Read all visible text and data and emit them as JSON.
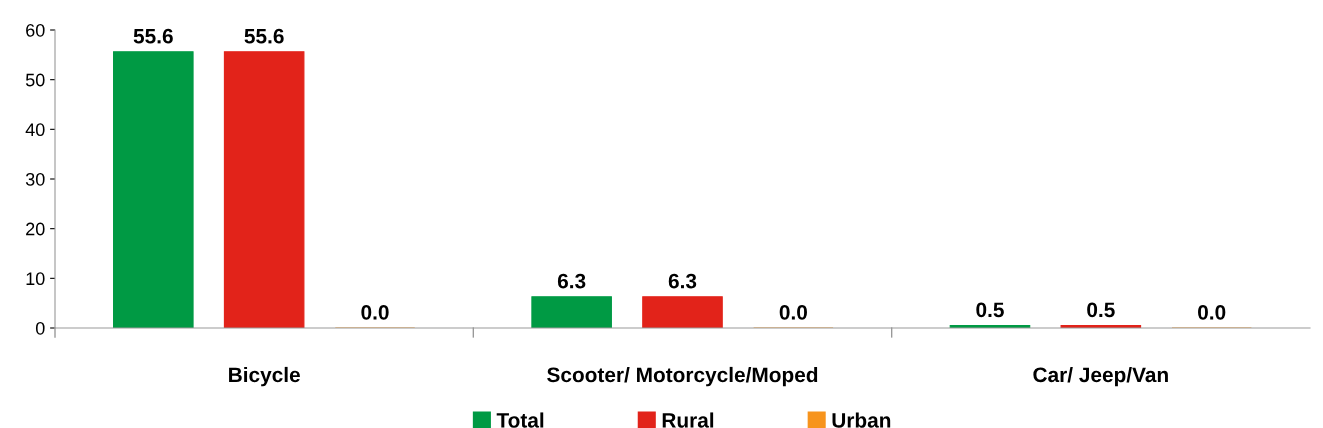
{
  "chart_data": {
    "type": "bar",
    "categories": [
      "Bicycle",
      "Scooter/ Motorcycle/Moped",
      "Car/ Jeep/Van"
    ],
    "series": [
      {
        "name": "Total",
        "color": "#009a44",
        "values": [
          55.6,
          6.3,
          0.5
        ],
        "value_labels": [
          "55.6",
          "6.3",
          "0.5"
        ]
      },
      {
        "name": "Rural",
        "color": "#e2231a",
        "values": [
          55.6,
          6.3,
          0.5
        ],
        "value_labels": [
          "55.6",
          "6.3",
          "0.5"
        ]
      },
      {
        "name": "Urban",
        "color": "#f7941d",
        "values": [
          0.0,
          0.0,
          0.0
        ],
        "value_labels": [
          "0.0",
          "0.0",
          "0.0"
        ]
      }
    ],
    "ylim": [
      0,
      60
    ],
    "yticks": [
      0,
      10,
      20,
      30,
      40,
      50,
      60
    ],
    "grid": false,
    "legend": "bottom"
  }
}
